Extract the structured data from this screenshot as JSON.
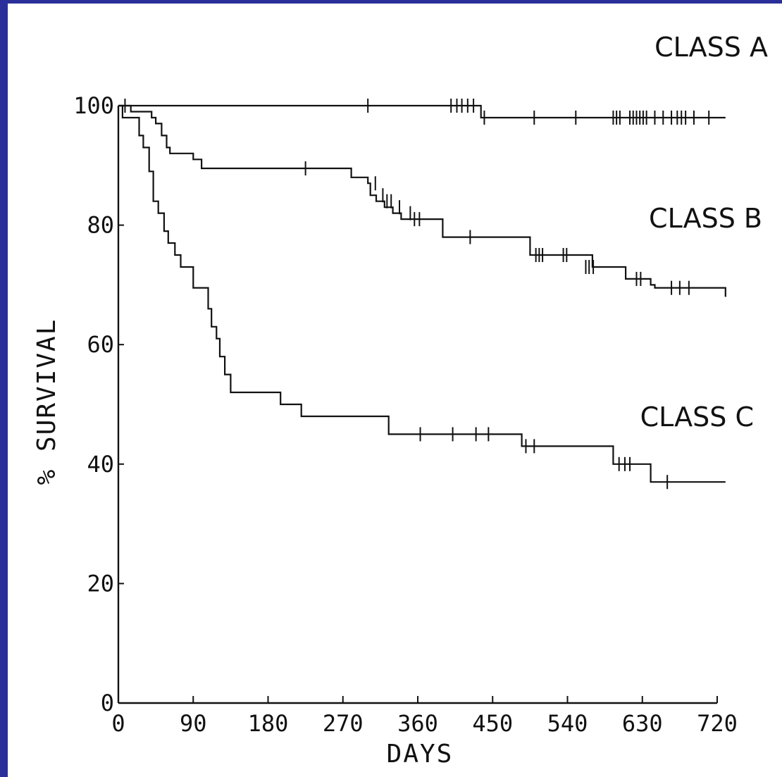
{
  "chart_data": {
    "type": "line",
    "subtype": "kaplan-meier survival step plot",
    "title": "",
    "xlabel": "DAYS",
    "ylabel": "% SURVIVAL",
    "xlim": [
      0,
      720
    ],
    "ylim": [
      0,
      100
    ],
    "xticks": [
      0,
      90,
      180,
      270,
      360,
      450,
      540,
      630,
      720
    ],
    "xtick_labels": [
      "0",
      "90",
      "180",
      "270",
      "360",
      "450",
      "540",
      "630",
      "720"
    ],
    "yticks": [
      0,
      20,
      40,
      60,
      80,
      100
    ],
    "ytick_labels": [
      "0",
      "20",
      "40",
      "60",
      "80",
      "100"
    ],
    "grid": false,
    "legend": "none (series labelled directly on plot)",
    "series": [
      {
        "name": "CLASS A",
        "steps": [
          [
            0,
            100
          ],
          [
            436,
            100
          ],
          [
            436,
            98
          ],
          [
            730,
            98
          ]
        ],
        "censored": [
          [
            8,
            100
          ],
          [
            300,
            100
          ],
          [
            400,
            100
          ],
          [
            407,
            100
          ],
          [
            413,
            100
          ],
          [
            420,
            100
          ],
          [
            427,
            100
          ],
          [
            440,
            98
          ],
          [
            500,
            98
          ],
          [
            550,
            98
          ],
          [
            595,
            98
          ],
          [
            599,
            98
          ],
          [
            603,
            98
          ],
          [
            615,
            98
          ],
          [
            619,
            98
          ],
          [
            623,
            98
          ],
          [
            627,
            98
          ],
          [
            631,
            98
          ],
          [
            635,
            98
          ],
          [
            645,
            98
          ],
          [
            655,
            98
          ],
          [
            665,
            98
          ],
          [
            672,
            98
          ],
          [
            677,
            98
          ],
          [
            682,
            98
          ],
          [
            692,
            98
          ],
          [
            710,
            98
          ]
        ]
      },
      {
        "name": "CLASS B",
        "steps": [
          [
            0,
            100
          ],
          [
            15,
            100
          ],
          [
            15,
            99
          ],
          [
            40,
            99
          ],
          [
            40,
            98
          ],
          [
            45,
            98
          ],
          [
            45,
            97
          ],
          [
            52,
            97
          ],
          [
            52,
            95
          ],
          [
            58,
            95
          ],
          [
            58,
            93
          ],
          [
            62,
            93
          ],
          [
            62,
            92
          ],
          [
            90,
            92
          ],
          [
            90,
            91
          ],
          [
            100,
            91
          ],
          [
            100,
            89.5
          ],
          [
            280,
            89.5
          ],
          [
            280,
            88
          ],
          [
            300,
            88
          ],
          [
            300,
            87
          ],
          [
            303,
            87
          ],
          [
            303,
            85
          ],
          [
            310,
            85
          ],
          [
            310,
            84
          ],
          [
            320,
            84
          ],
          [
            320,
            83
          ],
          [
            330,
            83
          ],
          [
            330,
            82
          ],
          [
            340,
            82
          ],
          [
            340,
            81
          ],
          [
            390,
            81
          ],
          [
            390,
            78
          ],
          [
            495,
            78
          ],
          [
            495,
            75
          ],
          [
            570,
            75
          ],
          [
            570,
            73
          ],
          [
            610,
            73
          ],
          [
            610,
            71
          ],
          [
            640,
            71
          ],
          [
            640,
            70
          ],
          [
            645,
            70
          ],
          [
            645,
            69.5
          ],
          [
            730,
            69.5
          ],
          [
            730,
            68
          ]
        ],
        "censored": [
          [
            225,
            89.5
          ],
          [
            309,
            87
          ],
          [
            318,
            85
          ],
          [
            323,
            84
          ],
          [
            328,
            84
          ],
          [
            338,
            83
          ],
          [
            351,
            82
          ],
          [
            356,
            81
          ],
          [
            362,
            81
          ],
          [
            423,
            78
          ],
          [
            502,
            75
          ],
          [
            506,
            75
          ],
          [
            510,
            75
          ],
          [
            535,
            75
          ],
          [
            539,
            75
          ],
          [
            562,
            73
          ],
          [
            566,
            73
          ],
          [
            571,
            73
          ],
          [
            623,
            71
          ],
          [
            628,
            71
          ],
          [
            665,
            69.5
          ],
          [
            675,
            69.5
          ],
          [
            686,
            69.5
          ]
        ]
      },
      {
        "name": "CLASS C",
        "steps": [
          [
            0,
            100
          ],
          [
            5,
            100
          ],
          [
            5,
            98
          ],
          [
            25,
            98
          ],
          [
            25,
            95
          ],
          [
            30,
            95
          ],
          [
            30,
            93
          ],
          [
            37,
            93
          ],
          [
            37,
            89
          ],
          [
            42,
            89
          ],
          [
            42,
            84
          ],
          [
            48,
            84
          ],
          [
            48,
            82
          ],
          [
            55,
            82
          ],
          [
            55,
            79
          ],
          [
            60,
            79
          ],
          [
            60,
            77
          ],
          [
            68,
            77
          ],
          [
            68,
            75
          ],
          [
            75,
            75
          ],
          [
            75,
            73
          ],
          [
            90,
            73
          ],
          [
            90,
            69.5
          ],
          [
            108,
            69.5
          ],
          [
            108,
            66
          ],
          [
            112,
            66
          ],
          [
            112,
            63
          ],
          [
            118,
            63
          ],
          [
            118,
            61
          ],
          [
            122,
            61
          ],
          [
            122,
            58
          ],
          [
            128,
            58
          ],
          [
            128,
            55
          ],
          [
            135,
            55
          ],
          [
            135,
            52
          ],
          [
            195,
            52
          ],
          [
            195,
            50
          ],
          [
            220,
            50
          ],
          [
            220,
            48
          ],
          [
            325,
            48
          ],
          [
            325,
            45
          ],
          [
            485,
            45
          ],
          [
            485,
            43
          ],
          [
            595,
            43
          ],
          [
            595,
            40
          ],
          [
            640,
            40
          ],
          [
            640,
            37
          ],
          [
            730,
            37
          ]
        ],
        "censored": [
          [
            363,
            45
          ],
          [
            402,
            45
          ],
          [
            430,
            45
          ],
          [
            445,
            45
          ],
          [
            490,
            43
          ],
          [
            500,
            43
          ],
          [
            602,
            40
          ],
          [
            609,
            40
          ],
          [
            615,
            40
          ],
          [
            660,
            37
          ]
        ]
      }
    ],
    "annotations": [
      "CLASS A",
      "CLASS B",
      "CLASS C"
    ]
  }
}
